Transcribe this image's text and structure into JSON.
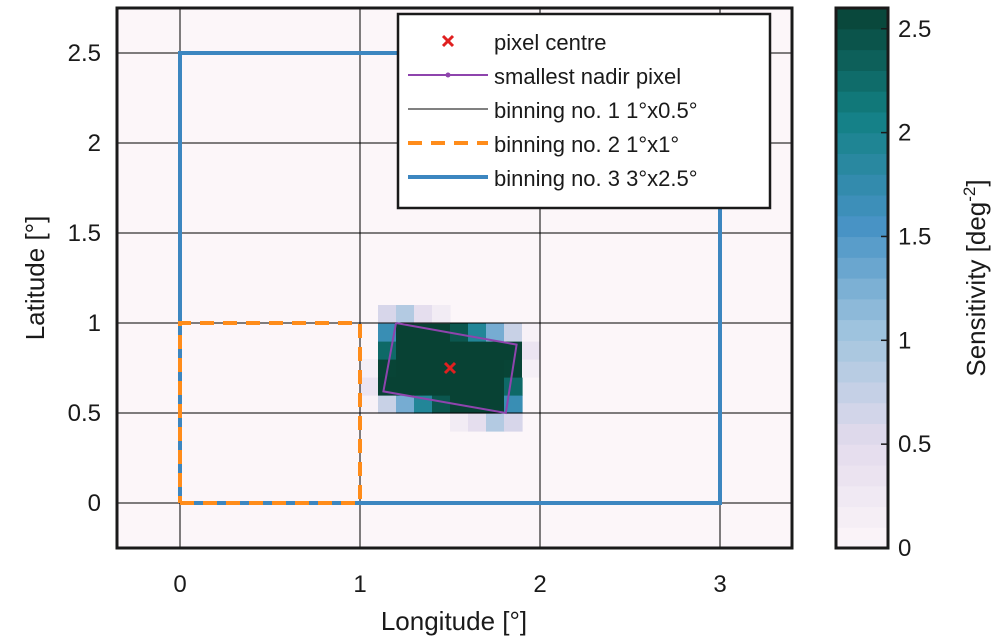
{
  "chart_data": {
    "type": "heatmap",
    "xlabel": "Longitude [°]",
    "ylabel": "Latitude [°]",
    "xlim": [
      -0.35,
      3.4
    ],
    "ylim": [
      -0.25,
      2.75
    ],
    "xticks": [
      0,
      1,
      2,
      3
    ],
    "yticks": [
      0,
      0.5,
      1,
      1.5,
      2,
      2.5
    ],
    "grid": true,
    "legend_position": "top-right",
    "colorbar": {
      "label": "Sensitivity [deg",
      "label_exponent": "-2",
      "label_suffix": "]",
      "range": [
        0,
        2.6
      ],
      "ticks": [
        0,
        0.5,
        1,
        1.5,
        2,
        2.5
      ],
      "colormap": "white-purple-blue-teal"
    },
    "heatmap": {
      "cell_size": 0.1,
      "center_lon": 1.5,
      "center_lat": 0.75,
      "peak_value": 2.6
    },
    "series": [
      {
        "name": "pixel centre",
        "kind": "marker",
        "color": "#e02020",
        "points": [
          [
            1.5,
            0.75
          ]
        ]
      },
      {
        "name": "smallest nadir pixel",
        "kind": "polygon",
        "color": "#8e44ad",
        "points": [
          [
            1.2,
            1.0
          ],
          [
            1.87,
            0.88
          ],
          [
            1.81,
            0.5
          ],
          [
            1.13,
            0.62
          ],
          [
            1.2,
            1.0
          ]
        ]
      },
      {
        "name": "binning no. 1 1°x0.5°",
        "kind": "grid",
        "color": "#000000"
      },
      {
        "name": "binning no. 2 1°x1°",
        "kind": "rect",
        "color": "#ff8c1a",
        "dash": true,
        "points": [
          [
            0,
            0
          ],
          [
            1,
            0
          ],
          [
            1,
            1
          ],
          [
            0,
            1
          ],
          [
            0,
            0
          ]
        ]
      },
      {
        "name": "binning no. 3 3°x2.5°",
        "kind": "rect",
        "color": "#3c86c0",
        "points": [
          [
            0,
            0
          ],
          [
            3,
            0
          ],
          [
            3,
            2.5
          ],
          [
            0,
            2.5
          ],
          [
            0,
            0
          ]
        ]
      }
    ]
  }
}
